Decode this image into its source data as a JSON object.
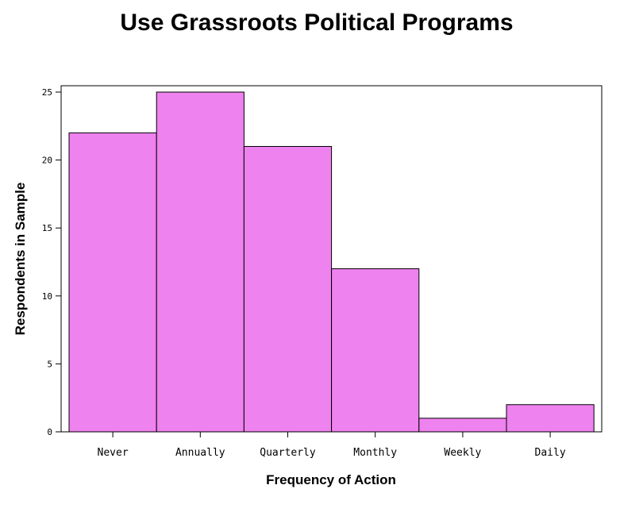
{
  "chart_data": {
    "type": "bar",
    "title": "Use Grassroots Political Programs",
    "xlabel": "Frequency of Action",
    "ylabel": "Respondents in Sample",
    "categories": [
      "Never",
      "Annually",
      "Quarterly",
      "Monthly",
      "Weekly",
      "Daily"
    ],
    "values": [
      22,
      25,
      21,
      12,
      1,
      2
    ],
    "ylim": [
      0,
      25
    ],
    "yticks": [
      0,
      5,
      10,
      15,
      20,
      25
    ],
    "grid": false,
    "bar_color": "#ee82ee",
    "edge_color": "#000000"
  }
}
